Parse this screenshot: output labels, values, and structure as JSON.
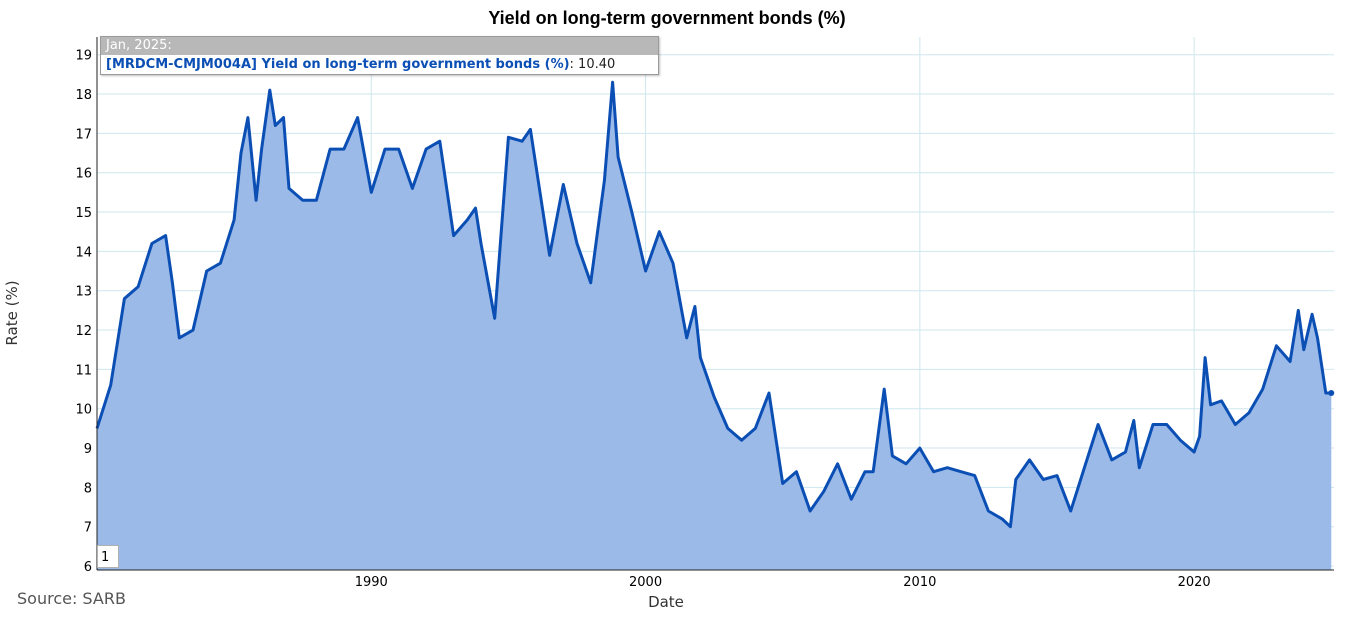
{
  "chart_data": {
    "type": "area",
    "title": "Yield on long-term government bonds (%)",
    "xlabel": "Date",
    "ylabel": "Rate (%)",
    "xlim": [
      1980.0,
      2025.1
    ],
    "ylim": [
      5.9,
      19.45
    ],
    "x_ticks": [
      1990,
      2000,
      2010,
      2020
    ],
    "y_ticks": [
      6,
      7,
      8,
      9,
      10,
      11,
      12,
      13,
      14,
      15,
      16,
      17,
      18,
      19
    ],
    "grid": true,
    "legend": "none",
    "colors": {
      "line": "#0b4fb5",
      "fill": "#9bbae8",
      "grid": "#cfe6ee"
    },
    "series": [
      {
        "x": [
          1980.0,
          1980.5,
          1981.0,
          1981.5,
          1982.0,
          1982.5,
          1982.75,
          1983.0,
          1983.5,
          1984.0,
          1984.5,
          1985.0,
          1985.25,
          1985.5,
          1985.8,
          1986.0,
          1986.3,
          1986.5,
          1986.8,
          1987.0,
          1987.5,
          1988.0,
          1988.5,
          1989.0,
          1989.5,
          1990.0,
          1990.5,
          1991.0,
          1991.5,
          1992.0,
          1992.5,
          1993.0,
          1993.5,
          1993.8,
          1994.0,
          1994.5,
          1995.0,
          1995.5,
          1995.8,
          1996.0,
          1996.5,
          1997.0,
          1997.5,
          1998.0,
          1998.5,
          1998.8,
          1999.0,
          1999.5,
          2000.0,
          2000.5,
          2001.0,
          2001.5,
          2001.8,
          2002.0,
          2002.5,
          2003.0,
          2003.5,
          2004.0,
          2004.5,
          2005.0,
          2005.5,
          2006.0,
          2006.5,
          2007.0,
          2007.5,
          2008.0,
          2008.3,
          2008.7,
          2009.0,
          2009.5,
          2010.0,
          2010.5,
          2011.0,
          2011.5,
          2012.0,
          2012.5,
          2013.0,
          2013.3,
          2013.5,
          2014.0,
          2014.5,
          2015.0,
          2015.5,
          2016.0,
          2016.5,
          2017.0,
          2017.5,
          2017.8,
          2018.0,
          2018.5,
          2019.0,
          2019.5,
          2020.0,
          2020.2,
          2020.4,
          2020.6,
          2021.0,
          2021.5,
          2022.0,
          2022.5,
          2023.0,
          2023.5,
          2023.8,
          2024.0,
          2024.3,
          2024.5,
          2024.8,
          2025.0
        ],
        "y": [
          9.5,
          10.6,
          12.8,
          13.1,
          14.2,
          14.4,
          13.2,
          11.8,
          12.0,
          13.5,
          13.7,
          14.8,
          16.5,
          17.4,
          15.3,
          16.6,
          18.1,
          17.2,
          17.4,
          15.6,
          15.3,
          15.3,
          16.6,
          16.6,
          17.4,
          15.5,
          16.6,
          16.6,
          15.6,
          16.6,
          16.8,
          14.4,
          14.8,
          15.1,
          14.2,
          12.3,
          16.9,
          16.8,
          17.1,
          16.2,
          13.9,
          15.7,
          14.2,
          13.2,
          15.8,
          18.3,
          16.4,
          15.0,
          13.5,
          14.5,
          13.7,
          11.8,
          12.6,
          11.3,
          10.3,
          9.5,
          9.2,
          9.5,
          10.4,
          8.1,
          8.4,
          7.4,
          7.9,
          8.6,
          7.7,
          8.4,
          8.4,
          10.5,
          8.8,
          8.6,
          9.0,
          8.4,
          8.5,
          8.4,
          8.3,
          7.4,
          7.2,
          7.0,
          8.2,
          8.7,
          8.2,
          8.3,
          7.4,
          8.5,
          9.6,
          8.7,
          8.9,
          9.7,
          8.5,
          9.6,
          9.6,
          9.2,
          8.9,
          9.3,
          11.3,
          10.1,
          10.2,
          9.6,
          9.9,
          10.5,
          11.6,
          11.2,
          12.5,
          11.5,
          12.4,
          11.8,
          10.4,
          10.4
        ]
      }
    ]
  },
  "tooltip": {
    "header": "Jan, 2025:",
    "series_label": "[MRDCM-CMJM004A] Yield on long-term government bonds (%)",
    "value": ": 10.40"
  },
  "source": "Source: SARB",
  "page_badge": "1"
}
